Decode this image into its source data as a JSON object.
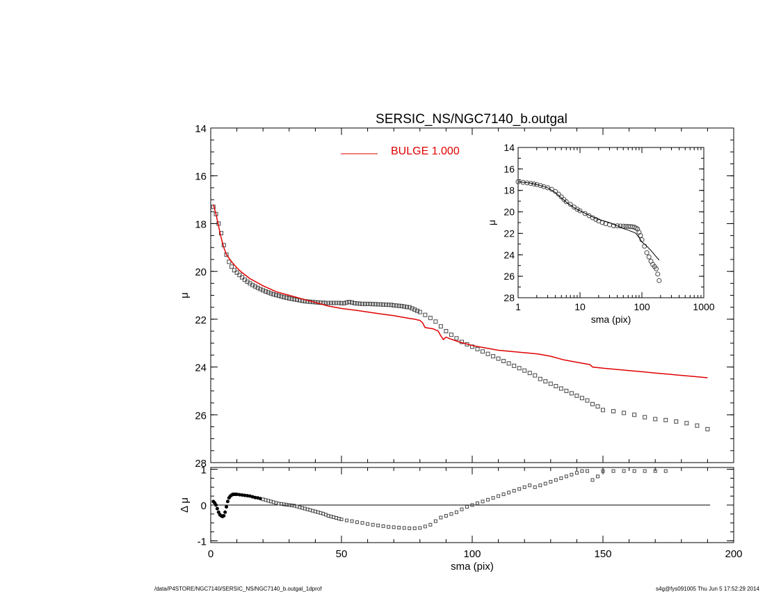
{
  "title": "SERSIC_NS/NGC7140_b.outgal",
  "footer_left": "/data/P4STORE/NGC7140/SERSIC_NS/NGC7140_b.outgal_1dprof",
  "footer_right": "s4g@fys091005  Thu Jun  5 17:52:29 2014",
  "colors": {
    "model": "#e00000",
    "data": "#444444",
    "axes": "#000000"
  },
  "chart_data": [
    {
      "id": "main",
      "type": "scatter",
      "xlabel": "",
      "ylabel": "μ",
      "xlim": [
        0,
        200
      ],
      "ylim": [
        28,
        14
      ],
      "y_inverted": true,
      "yticks": [
        14,
        16,
        18,
        20,
        22,
        24,
        26,
        28
      ],
      "legend": {
        "placement": "top-center",
        "entries": [
          {
            "label": "BULGE  1.000",
            "color": "#e00000"
          }
        ]
      },
      "series": [
        {
          "name": "data",
          "marker": "square",
          "color": "#444444",
          "x": [
            1,
            2,
            3,
            4,
            5,
            6,
            7,
            8,
            9,
            10,
            11,
            12,
            13,
            14,
            15,
            16,
            17,
            18,
            19,
            20,
            21,
            22,
            23,
            24,
            25,
            26,
            27,
            28,
            29,
            30,
            31,
            32,
            33,
            34,
            35,
            36,
            37,
            38,
            39,
            40,
            41,
            42,
            43,
            44,
            45,
            46,
            47,
            48,
            49,
            50,
            51,
            52,
            53,
            54,
            55,
            56,
            57,
            58,
            59,
            60,
            61,
            62,
            63,
            64,
            65,
            66,
            67,
            68,
            69,
            70,
            71,
            72,
            73,
            74,
            75,
            76,
            77,
            78,
            79,
            80,
            82,
            84,
            86,
            88,
            90,
            92,
            94,
            96,
            98,
            100,
            102,
            104,
            106,
            108,
            110,
            112,
            114,
            116,
            118,
            120,
            122,
            124,
            126,
            128,
            130,
            132,
            134,
            136,
            138,
            140,
            142,
            144,
            146,
            148,
            150,
            154,
            158,
            162,
            166,
            170,
            174,
            178,
            182,
            186,
            190
          ],
          "y": [
            17.3,
            17.6,
            18.0,
            18.4,
            18.9,
            19.3,
            19.6,
            19.8,
            19.95,
            20.05,
            20.15,
            20.25,
            20.35,
            20.43,
            20.5,
            20.57,
            20.63,
            20.69,
            20.74,
            20.79,
            20.84,
            20.88,
            20.92,
            20.96,
            20.99,
            21.02,
            21.05,
            21.08,
            21.1,
            21.13,
            21.15,
            21.17,
            21.19,
            21.21,
            21.23,
            21.25,
            21.26,
            21.27,
            21.28,
            21.29,
            21.3,
            21.31,
            21.31,
            21.32,
            21.32,
            21.32,
            21.32,
            21.32,
            21.32,
            21.33,
            21.33,
            21.3,
            21.28,
            21.3,
            21.33,
            21.34,
            21.35,
            21.36,
            21.36,
            21.36,
            21.36,
            21.37,
            21.37,
            21.38,
            21.38,
            21.39,
            21.39,
            21.4,
            21.4,
            21.42,
            21.43,
            21.44,
            21.45,
            21.47,
            21.49,
            21.5,
            21.55,
            21.6,
            21.65,
            21.7,
            21.82,
            21.95,
            22.1,
            22.3,
            22.5,
            22.65,
            22.8,
            22.95,
            23.05,
            23.15,
            23.25,
            23.35,
            23.45,
            23.55,
            23.65,
            23.75,
            23.85,
            23.95,
            24.05,
            24.15,
            24.25,
            24.35,
            24.5,
            24.6,
            24.7,
            24.8,
            24.9,
            25.0,
            25.1,
            25.2,
            25.3,
            25.4,
            25.55,
            25.65,
            25.8,
            25.85,
            25.92,
            26.0,
            26.1,
            26.18,
            26.22,
            26.28,
            26.35,
            26.45,
            26.6
          ]
        },
        {
          "name": "model",
          "type": "line",
          "color": "#e00000",
          "x": [
            1,
            2,
            3,
            4,
            5,
            6,
            8,
            10,
            12,
            15,
            20,
            25,
            30,
            35,
            40,
            45,
            50,
            55,
            60,
            65,
            70,
            75,
            78,
            80,
            81,
            82,
            85,
            87,
            88,
            89,
            90,
            91,
            95,
            100,
            105,
            110,
            115,
            120,
            125,
            130,
            135,
            140,
            145,
            146,
            150,
            155,
            160,
            165,
            170,
            175,
            180,
            185,
            190
          ],
          "y": [
            17.2,
            17.6,
            18.1,
            18.6,
            19.0,
            19.3,
            19.6,
            19.85,
            20.05,
            20.3,
            20.6,
            20.85,
            21.0,
            21.15,
            21.3,
            21.45,
            21.55,
            21.62,
            21.7,
            21.78,
            21.85,
            21.95,
            22.0,
            22.05,
            22.15,
            22.35,
            22.4,
            22.5,
            22.7,
            22.85,
            22.75,
            22.8,
            22.95,
            23.1,
            23.2,
            23.3,
            23.35,
            23.4,
            23.45,
            23.55,
            23.7,
            23.8,
            23.9,
            24.0,
            24.05,
            24.1,
            24.15,
            24.2,
            24.25,
            24.3,
            24.35,
            24.4,
            24.45
          ]
        }
      ]
    },
    {
      "id": "residual",
      "type": "scatter",
      "xlabel": "sma (pix)",
      "ylabel": "Δ μ",
      "xlim": [
        0,
        200
      ],
      "ylim": [
        -1.05,
        1.05
      ],
      "xticks": [
        0,
        50,
        100,
        150,
        200
      ],
      "yticks": [
        -1,
        0,
        1
      ],
      "zero_line": true,
      "series": [
        {
          "name": "residual",
          "marker": "square",
          "color": "#444444",
          "x": [
            1,
            1.5,
            2,
            2.5,
            3,
            3.5,
            4,
            4.5,
            5,
            5.5,
            6,
            6.5,
            7,
            7.5,
            8,
            8.5,
            9,
            9.5,
            10,
            11,
            12,
            13,
            14,
            15,
            16,
            17,
            18,
            19,
            20,
            21,
            22,
            23,
            24,
            25,
            26,
            27,
            28,
            29,
            30,
            31,
            32,
            33,
            34,
            35,
            36,
            37,
            38,
            39,
            40,
            41,
            42,
            43,
            44,
            45,
            46,
            47,
            48,
            49,
            50,
            52,
            54,
            56,
            58,
            60,
            62,
            64,
            66,
            68,
            70,
            72,
            74,
            76,
            78,
            80,
            82,
            84,
            86,
            88,
            90,
            92,
            94,
            96,
            98,
            100,
            102,
            104,
            106,
            108,
            110,
            112,
            114,
            116,
            118,
            120,
            122,
            124,
            126,
            128,
            130,
            132,
            134,
            136,
            138,
            140,
            142,
            144,
            146,
            148,
            150,
            154,
            158,
            162,
            166,
            170,
            174
          ],
          "y": [
            0.1,
            0.06,
            0.0,
            -0.1,
            -0.2,
            -0.27,
            -0.3,
            -0.32,
            -0.3,
            -0.2,
            -0.05,
            0.1,
            0.2,
            0.25,
            0.28,
            0.3,
            0.3,
            0.3,
            0.3,
            0.29,
            0.28,
            0.27,
            0.26,
            0.25,
            0.23,
            0.21,
            0.2,
            0.18,
            0.16,
            0.14,
            0.12,
            0.1,
            0.08,
            0.06,
            0.04,
            0.03,
            0.02,
            0.01,
            0.0,
            -0.01,
            -0.02,
            -0.04,
            -0.06,
            -0.08,
            -0.1,
            -0.12,
            -0.14,
            -0.16,
            -0.18,
            -0.2,
            -0.22,
            -0.24,
            -0.27,
            -0.3,
            -0.32,
            -0.34,
            -0.36,
            -0.38,
            -0.4,
            -0.43,
            -0.45,
            -0.48,
            -0.5,
            -0.53,
            -0.55,
            -0.57,
            -0.59,
            -0.61,
            -0.62,
            -0.63,
            -0.64,
            -0.65,
            -0.65,
            -0.64,
            -0.6,
            -0.55,
            -0.45,
            -0.35,
            -0.3,
            -0.25,
            -0.2,
            -0.12,
            -0.05,
            0.0,
            0.05,
            0.1,
            0.15,
            0.2,
            0.25,
            0.3,
            0.35,
            0.4,
            0.45,
            0.5,
            0.55,
            0.5,
            0.55,
            0.6,
            0.65,
            0.7,
            0.75,
            0.8,
            0.85,
            0.9,
            0.95,
            0.95,
            0.7,
            0.8,
            0.95,
            0.95,
            0.95,
            0.95,
            0.95,
            0.95,
            0.95
          ]
        }
      ]
    },
    {
      "id": "inset",
      "type": "scatter",
      "xlabel": "sma (pix)",
      "ylabel": "μ",
      "x_scale": "log",
      "xlim": [
        1,
        1000
      ],
      "ylim": [
        28,
        14
      ],
      "y_inverted": true,
      "xticks": [
        1,
        10,
        100,
        1000
      ],
      "yticks": [
        14,
        16,
        18,
        20,
        22,
        24,
        26,
        28
      ],
      "series": [
        {
          "name": "data",
          "marker": "circle",
          "color": "#444444",
          "x": [
            1,
            1.2,
            1.4,
            1.6,
            1.8,
            2,
            2.3,
            2.6,
            3,
            3.5,
            4,
            4.5,
            5,
            5.5,
            6,
            7,
            8,
            9,
            10,
            12,
            14,
            16,
            18,
            20,
            23,
            26,
            30,
            35,
            40,
            45,
            50,
            55,
            60,
            65,
            70,
            75,
            80,
            85,
            90,
            95,
            100,
            110,
            120,
            130,
            140,
            150,
            160,
            170,
            180,
            190
          ],
          "y": [
            17.2,
            17.25,
            17.3,
            17.35,
            17.4,
            17.45,
            17.55,
            17.65,
            17.75,
            17.9,
            18.1,
            18.35,
            18.6,
            18.85,
            19.05,
            19.3,
            19.55,
            19.75,
            19.9,
            20.15,
            20.35,
            20.55,
            20.7,
            20.85,
            21.0,
            21.1,
            21.2,
            21.3,
            21.3,
            21.32,
            21.33,
            21.34,
            21.36,
            21.37,
            21.39,
            21.42,
            21.5,
            21.6,
            21.9,
            22.2,
            22.6,
            23.2,
            23.8,
            24.2,
            24.6,
            24.9,
            25.1,
            25.3,
            25.8,
            26.4
          ]
        },
        {
          "name": "model",
          "type": "line",
          "color": "#000000",
          "x": [
            1,
            1.5,
            2,
            3,
            4,
            5,
            6,
            8,
            10,
            15,
            20,
            30,
            40,
            50,
            60,
            70,
            80,
            90,
            100,
            120,
            140,
            160,
            190
          ],
          "y": [
            17.2,
            17.3,
            17.45,
            17.75,
            18.2,
            18.7,
            19.1,
            19.6,
            19.9,
            20.4,
            20.7,
            21.0,
            21.3,
            21.55,
            21.7,
            21.85,
            22.0,
            22.4,
            22.8,
            23.2,
            23.6,
            24.0,
            24.5
          ]
        }
      ]
    }
  ]
}
